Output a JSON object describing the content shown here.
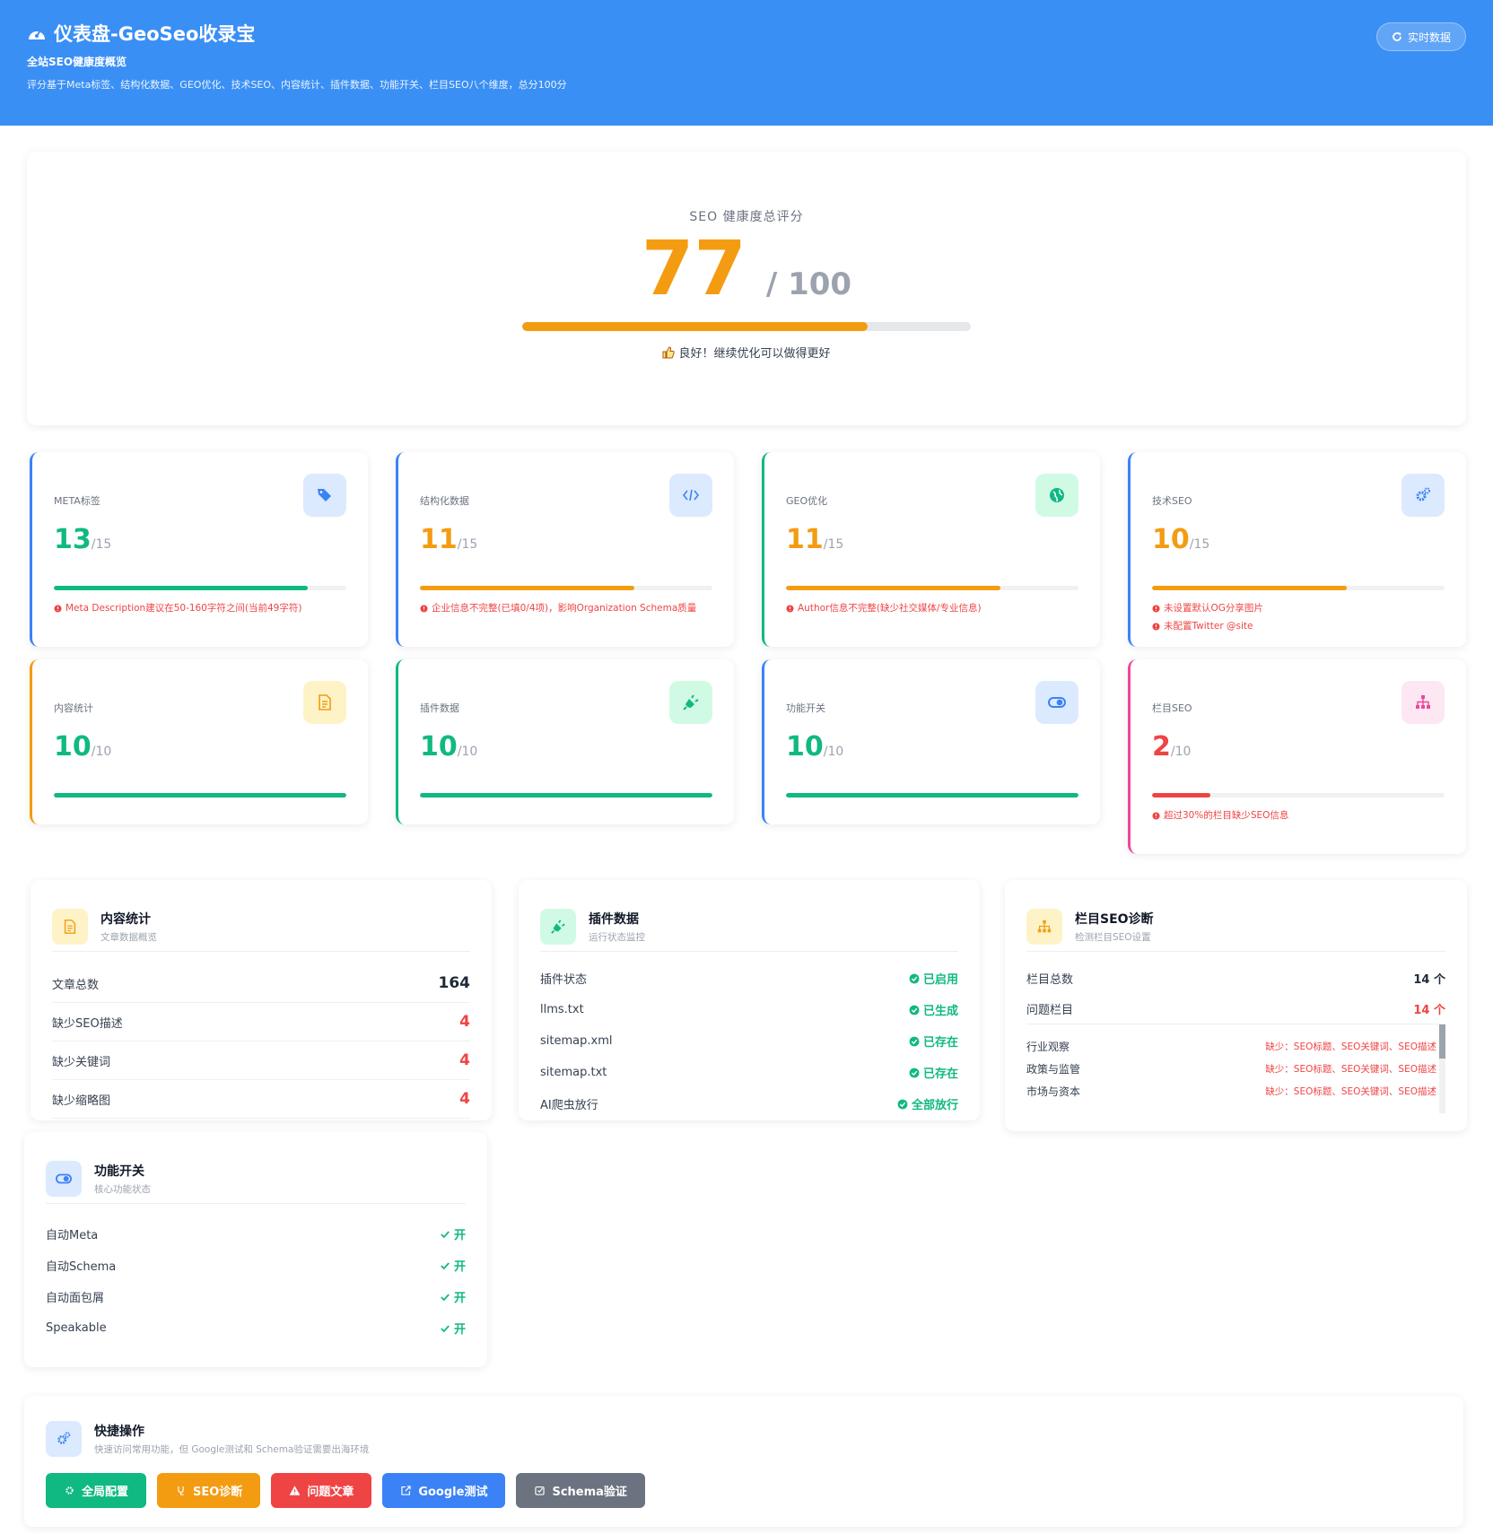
{
  "header": {
    "title": "仪表盘-GeoSeo收录宝",
    "subtitle": "全站SEO健康度概览",
    "description": "评分基于Meta标签、结构化数据、GEO优化、技术SEO、内容统计、插件数据、功能开关、栏目SEO八个维度，总分100分",
    "button": "实时数据"
  },
  "overview": {
    "label": "SEO 健康度总评分",
    "value": 77,
    "separator": "/",
    "max": 100,
    "color": "#f39c12",
    "comment": "良好！继续优化可以做得更好"
  },
  "cards": [
    {
      "name": "META标签",
      "score": 13,
      "max": 15,
      "color": "#10b981",
      "accent": "#3b82f6",
      "icon_bg": "#dbeafe",
      "icon_color": "#3b82f6",
      "issues": [
        "Meta Description建议在50-160字符之间(当前49字符)"
      ]
    },
    {
      "name": "结构化数据",
      "score": 11,
      "max": 15,
      "color": "#f39c12",
      "accent": "#3b82f6",
      "icon_bg": "#dbeafe",
      "icon_color": "#3b82f6",
      "issues": [
        "企业信息不完整(已填0/4项)，影响Organization Schema质量"
      ]
    },
    {
      "name": "GEO优化",
      "score": 11,
      "max": 15,
      "color": "#f39c12",
      "accent": "#10b981",
      "icon_bg": "#d1fae5",
      "icon_color": "#10b981",
      "issues": [
        "Author信息不完整(缺少社交媒体/专业信息)"
      ]
    },
    {
      "name": "技术SEO",
      "score": 10,
      "max": 15,
      "color": "#f39c12",
      "accent": "#3b82f6",
      "icon_bg": "#dbeafe",
      "icon_color": "#3b82f6",
      "issues": [
        "未设置默认OG分享图片",
        "未配置Twitter @site"
      ]
    },
    {
      "name": "内容统计",
      "score": 10,
      "max": 10,
      "color": "#10b981",
      "accent": "#f39c12",
      "icon_bg": "#fef3c7",
      "icon_color": "#f39c12",
      "issues": []
    },
    {
      "name": "插件数据",
      "score": 10,
      "max": 10,
      "color": "#10b981",
      "accent": "#10b981",
      "icon_bg": "#d1fae5",
      "icon_color": "#10b981",
      "issues": []
    },
    {
      "name": "功能开关",
      "score": 10,
      "max": 10,
      "color": "#10b981",
      "accent": "#3b82f6",
      "icon_bg": "#dbeafe",
      "icon_color": "#3b82f6",
      "issues": []
    },
    {
      "name": "栏目SEO",
      "score": 2,
      "max": 10,
      "color": "#ef4444",
      "accent": "#ec4899",
      "icon_bg": "#fce7f3",
      "icon_color": "#ec4899",
      "issues": [
        "超过30%的栏目缺少SEO信息"
      ]
    }
  ],
  "content_stats": {
    "title": "内容统计",
    "subtitle": "文章数据概览",
    "rows": [
      {
        "label": "文章总数",
        "value": 164,
        "color": "#1f2937"
      },
      {
        "label": "缺少SEO描述",
        "value": 4,
        "color": "#ef4444"
      },
      {
        "label": "缺少关键词",
        "value": 4,
        "color": "#ef4444"
      },
      {
        "label": "缺少缩略图",
        "value": 4,
        "color": "#ef4444"
      }
    ]
  },
  "plugin_data": {
    "title": "插件数据",
    "subtitle": "运行状态监控",
    "rows": [
      {
        "label": "插件状态",
        "status": "已启用"
      },
      {
        "label": "llms.txt",
        "status": "已生成"
      },
      {
        "label": "sitemap.xml",
        "status": "已存在"
      },
      {
        "label": "sitemap.txt",
        "status": "已存在"
      },
      {
        "label": "AI爬虫放行",
        "status": "全部放行"
      }
    ]
  },
  "category_seo": {
    "title": "栏目SEO诊断",
    "subtitle": "检测栏目SEO设置",
    "stats": [
      {
        "label": "栏目总数",
        "value": 14,
        "unit": "个",
        "color": "#1f2937"
      },
      {
        "label": "问题栏目",
        "value": 14,
        "unit": "个",
        "color": "#ef4444"
      }
    ],
    "categories": [
      {
        "name": "行业观察",
        "issue": "缺少：SEO标题、SEO关键词、SEO描述"
      },
      {
        "name": "政策与监管",
        "issue": "缺少：SEO标题、SEO关键词、SEO描述"
      },
      {
        "name": "市场与资本",
        "issue": "缺少：SEO标题、SEO关键词、SEO描述"
      }
    ]
  },
  "feature_switches": {
    "title": "功能开关",
    "subtitle": "核心功能状态",
    "rows": [
      {
        "label": "自动Meta",
        "status": "开"
      },
      {
        "label": "自动Schema",
        "status": "开"
      },
      {
        "label": "自动面包屑",
        "status": "开"
      },
      {
        "label": "Speakable",
        "status": "开"
      }
    ]
  },
  "quick_actions": {
    "title": "快捷操作",
    "subtitle": "快速访问常用功能，但 Google测试和 Schema验证需要出海环境",
    "buttons": [
      {
        "label": "全局配置",
        "color": "#10b981"
      },
      {
        "label": "SEO诊断",
        "color": "#f39c12"
      },
      {
        "label": "问题文章",
        "color": "#ef4444"
      },
      {
        "label": "Google测试",
        "color": "#3b82f6"
      },
      {
        "label": "Schema验证",
        "color": "#6b7280"
      }
    ]
  }
}
